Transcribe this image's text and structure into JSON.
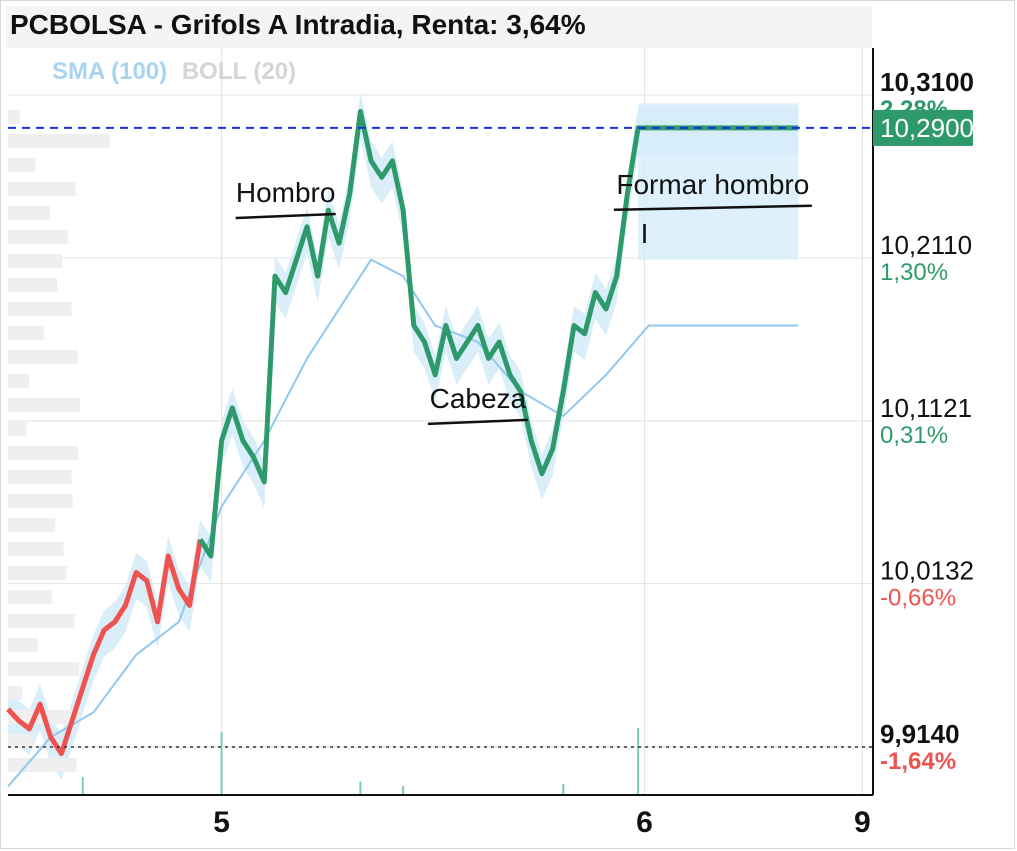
{
  "header": {
    "title": "PCBOLSA - Grifols A Intradia, Renta: 3,64%"
  },
  "legend": {
    "sma": "SMA (100)",
    "boll": "BOLL (20)"
  },
  "colors": {
    "up": "#2e9a6c",
    "down": "#ef5350",
    "sma": "#90c8ee",
    "band": "#d6ecfa",
    "dashed_ref": "#1a2ee6",
    "price_tag": "#2e9a6c"
  },
  "chart_data": {
    "type": "line",
    "title": "PCBOLSA - Grifols A Intradia, Renta: 3,64%",
    "xlabel": "",
    "ylabel": "",
    "x_ticks": [
      "5",
      "6",
      "9"
    ],
    "ylim": [
      9.88,
      10.32
    ],
    "grid": true,
    "y_ticks": [
      {
        "value": 10.31,
        "label": "10,3100",
        "pct": "2,28%",
        "pct_sign": "up",
        "bold": true
      },
      {
        "value": 10.211,
        "label": "10,2110",
        "pct": "1,30%",
        "pct_sign": "up",
        "bold": false
      },
      {
        "value": 10.1121,
        "label": "10,1121",
        "pct": "0,31%",
        "pct_sign": "up",
        "bold": false
      },
      {
        "value": 10.0132,
        "label": "10,0132",
        "pct": "-0,66%",
        "pct_sign": "down",
        "bold": false
      },
      {
        "value": 9.914,
        "label": "9,9140",
        "pct": "-1,64%",
        "pct_sign": "down",
        "bold": true
      }
    ],
    "last_price": {
      "value": 10.29,
      "label": "10,2900"
    },
    "reference_price": 9.914,
    "price_series": [
      [
        0.0,
        9.937
      ],
      [
        0.05,
        9.93
      ],
      [
        0.1,
        9.925
      ],
      [
        0.15,
        9.94
      ],
      [
        0.2,
        9.92
      ],
      [
        0.25,
        9.91
      ],
      [
        0.3,
        9.93
      ],
      [
        0.35,
        9.95
      ],
      [
        0.4,
        9.97
      ],
      [
        0.45,
        9.985
      ],
      [
        0.5,
        9.99
      ],
      [
        0.55,
        10.0
      ],
      [
        0.6,
        10.02
      ],
      [
        0.65,
        10.015
      ],
      [
        0.7,
        9.99
      ],
      [
        0.75,
        10.03
      ],
      [
        0.8,
        10.01
      ],
      [
        0.85,
        10.0
      ],
      [
        0.9,
        10.04
      ],
      [
        0.95,
        10.03
      ],
      [
        1.0,
        10.1
      ],
      [
        1.05,
        10.12
      ],
      [
        1.1,
        10.1
      ],
      [
        1.15,
        10.09
      ],
      [
        1.2,
        10.075
      ],
      [
        1.25,
        10.2
      ],
      [
        1.3,
        10.19
      ],
      [
        1.35,
        10.21
      ],
      [
        1.4,
        10.23
      ],
      [
        1.45,
        10.2
      ],
      [
        1.5,
        10.24
      ],
      [
        1.55,
        10.22
      ],
      [
        1.6,
        10.25
      ],
      [
        1.65,
        10.3
      ],
      [
        1.7,
        10.27
      ],
      [
        1.75,
        10.26
      ],
      [
        1.8,
        10.27
      ],
      [
        1.85,
        10.24
      ],
      [
        1.9,
        10.17
      ],
      [
        1.95,
        10.16
      ],
      [
        2.0,
        10.14
      ],
      [
        2.05,
        10.17
      ],
      [
        2.1,
        10.15
      ],
      [
        2.15,
        10.16
      ],
      [
        2.2,
        10.17
      ],
      [
        2.25,
        10.15
      ],
      [
        2.3,
        10.16
      ],
      [
        2.35,
        10.14
      ],
      [
        2.4,
        10.13
      ],
      [
        2.45,
        10.1
      ],
      [
        2.5,
        10.08
      ],
      [
        2.55,
        10.095
      ],
      [
        2.6,
        10.13
      ],
      [
        2.65,
        10.17
      ],
      [
        2.7,
        10.165
      ],
      [
        2.75,
        10.19
      ],
      [
        2.8,
        10.18
      ],
      [
        2.85,
        10.2
      ],
      [
        2.9,
        10.25
      ],
      [
        2.95,
        10.29
      ],
      [
        3.0,
        10.29
      ],
      [
        3.2,
        10.29
      ],
      [
        3.4,
        10.29
      ],
      [
        3.6,
        10.29
      ],
      [
        3.7,
        10.29
      ]
    ],
    "down_segment_end_x": 0.9,
    "sma_series": [
      [
        0.0,
        9.89
      ],
      [
        0.2,
        9.92
      ],
      [
        0.4,
        9.935
      ],
      [
        0.6,
        9.97
      ],
      [
        0.8,
        9.99
      ],
      [
        1.0,
        10.06
      ],
      [
        1.2,
        10.1
      ],
      [
        1.4,
        10.15
      ],
      [
        1.6,
        10.19
      ],
      [
        1.7,
        10.21
      ],
      [
        1.85,
        10.2
      ],
      [
        2.0,
        10.17
      ],
      [
        2.2,
        10.16
      ],
      [
        2.4,
        10.13
      ],
      [
        2.6,
        10.115
      ],
      [
        2.8,
        10.14
      ],
      [
        3.0,
        10.17
      ],
      [
        3.4,
        10.17
      ],
      [
        3.7,
        10.17
      ]
    ],
    "bollinger_band": {
      "upper_last": 10.305,
      "lower_last": 10.21,
      "start_x": 2.95,
      "end_x": 3.7
    },
    "volume": [
      [
        1.0,
        0.14
      ],
      [
        2.95,
        0.15
      ],
      [
        0.35,
        0.04
      ],
      [
        1.65,
        0.03
      ],
      [
        2.6,
        0.025
      ],
      [
        1.85,
        0.02
      ]
    ],
    "annotations": [
      {
        "text": "Hombro",
        "x": 1.3,
        "y": 10.245
      },
      {
        "text": "Cabeza",
        "x": 2.2,
        "y": 10.12
      },
      {
        "text": "Formar hombro",
        "x": 3.3,
        "y": 10.25
      },
      {
        "text": "I",
        "x": 2.98,
        "y": 10.22
      }
    ]
  }
}
